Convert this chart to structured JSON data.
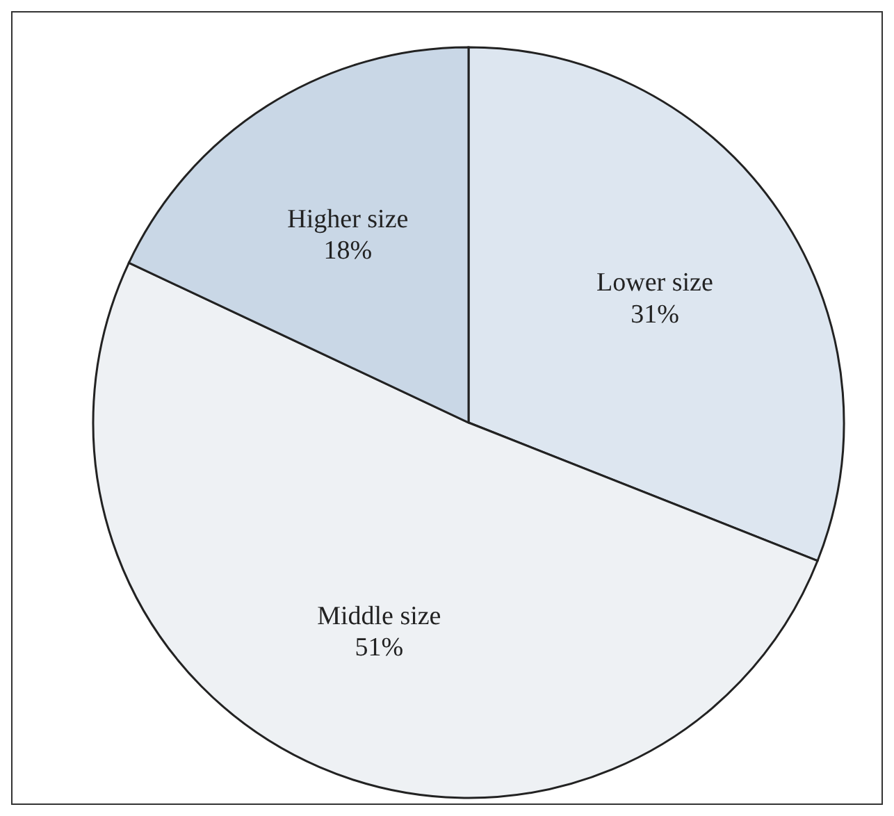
{
  "chart_data": {
    "type": "pie",
    "categories": [
      "Lower size",
      "Middle size",
      "Higher size"
    ],
    "values": [
      31,
      51,
      18
    ],
    "value_labels": [
      "31%",
      "51%",
      "18%"
    ],
    "colors": [
      "#dde6f0",
      "#eef1f4",
      "#c9d7e6"
    ]
  }
}
